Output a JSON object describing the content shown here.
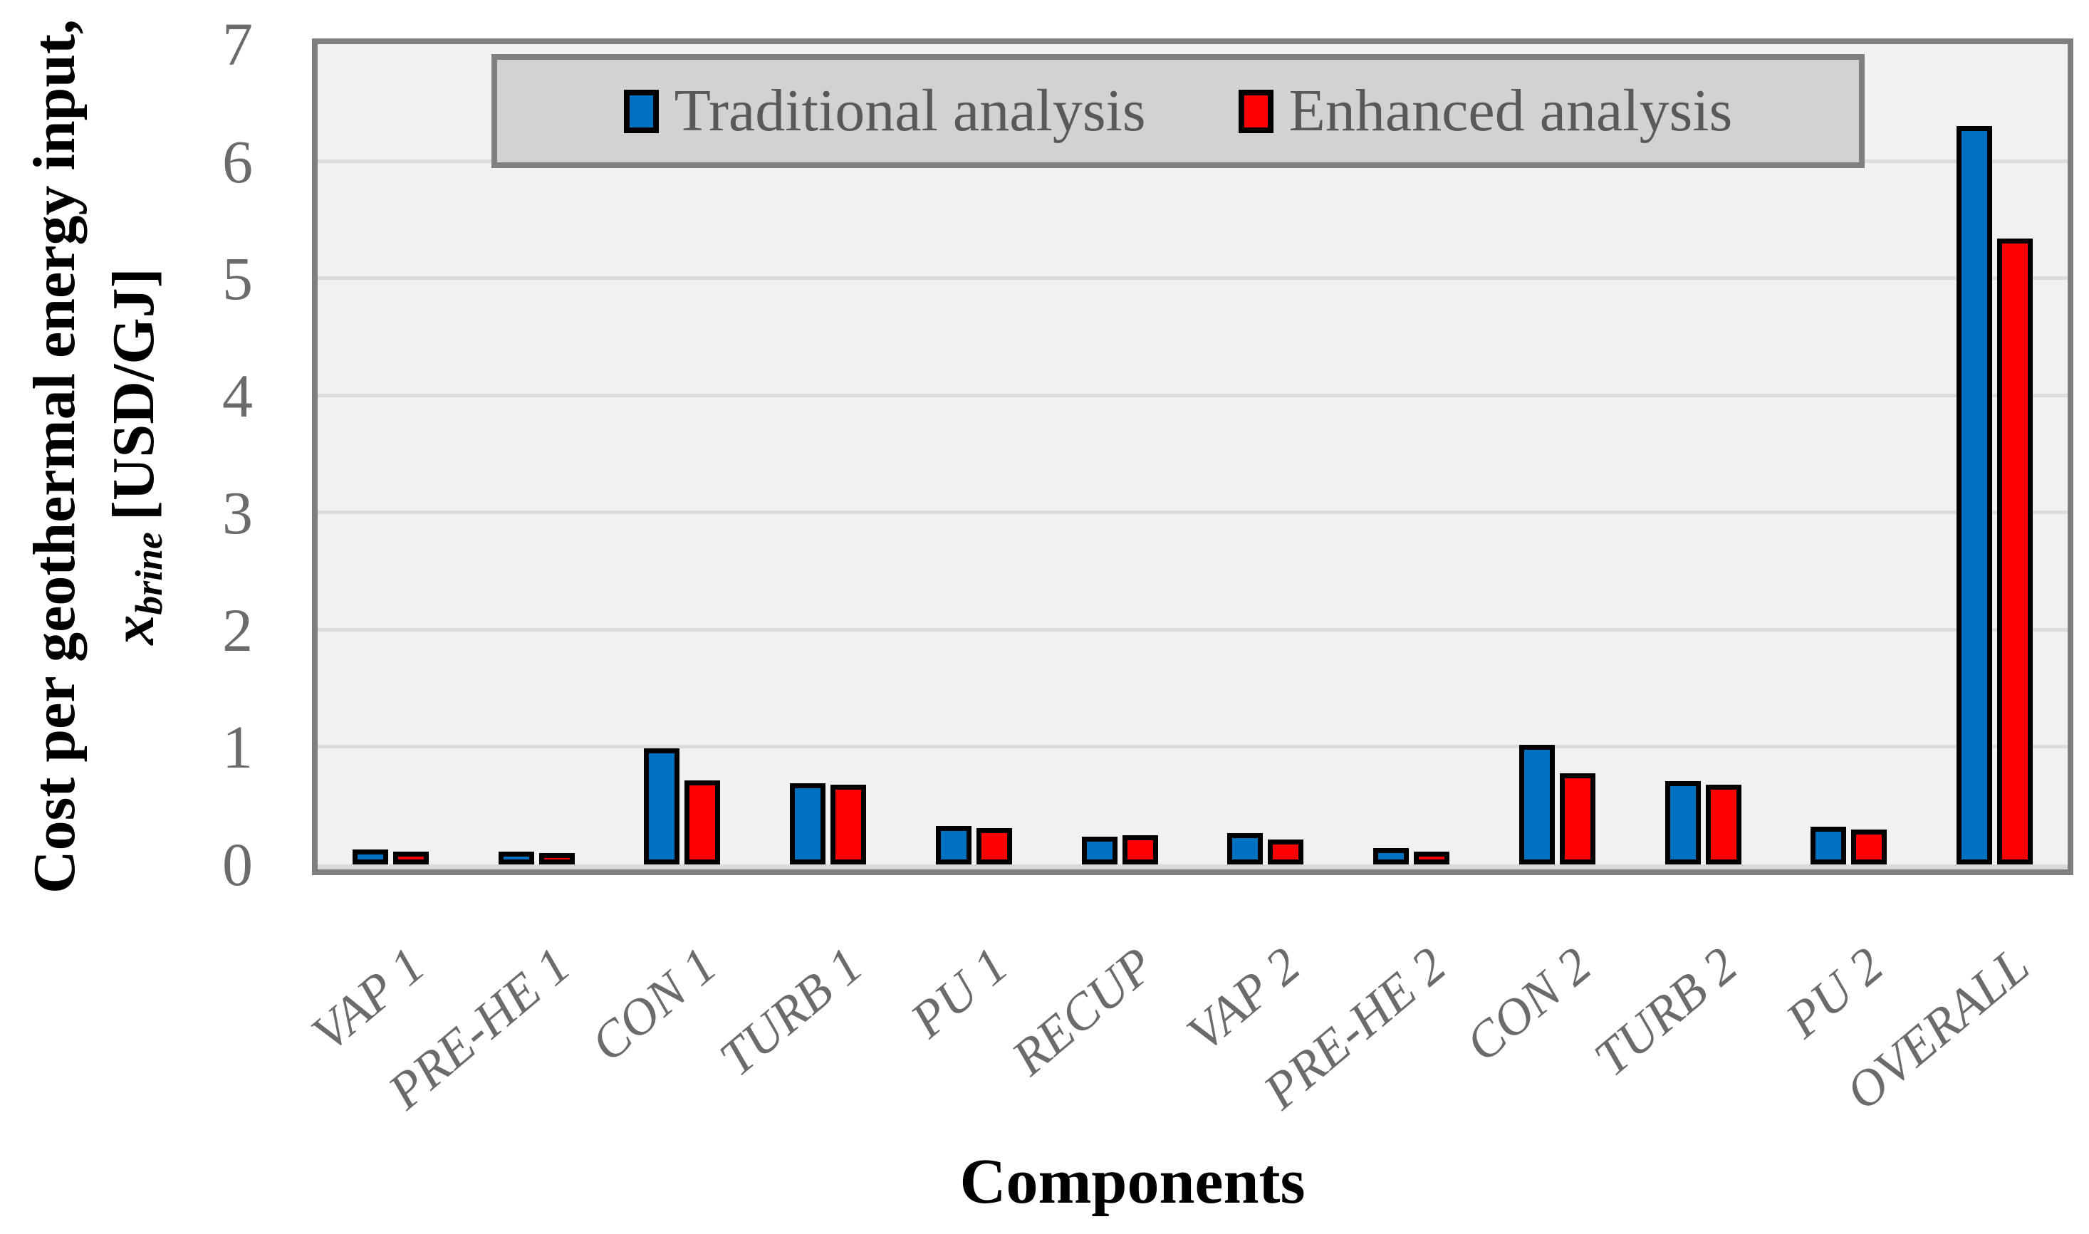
{
  "chart_data": {
    "type": "bar",
    "title": "",
    "xlabel": "Components",
    "ylabel": {
      "line1": "Cost per geothermal energy input,",
      "symbol": "x",
      "symbol_sub": "brine",
      "units": "[USD/GJ]"
    },
    "categories": [
      "VAP 1",
      "PRE-HE 1",
      "CON 1",
      "TURB 1",
      "PU 1",
      "RECUP",
      "VAP 2",
      "PRE-HE 2",
      "CON 2",
      "TURB 2",
      "PU 2",
      "OVERALL"
    ],
    "series": [
      {
        "name": "Traditional analysis",
        "color": "#0070C0",
        "values": [
          0.13,
          0.11,
          0.99,
          0.69,
          0.33,
          0.24,
          0.27,
          0.14,
          1.02,
          0.71,
          0.32,
          6.3
        ]
      },
      {
        "name": "Enhanced analysis",
        "color": "#FF0000",
        "values": [
          0.11,
          0.1,
          0.72,
          0.68,
          0.31,
          0.25,
          0.21,
          0.11,
          0.78,
          0.68,
          0.3,
          5.34
        ]
      }
    ],
    "ylim": [
      0,
      7
    ],
    "yticks": [
      0,
      1,
      2,
      3,
      4,
      5,
      6,
      7
    ],
    "grid": "horizontal",
    "legend_position": "top-inside"
  },
  "style": {
    "plot_background": "#F1F1F1",
    "gridline_color": "#DCDCDC",
    "axis_border_color": "#7F7F7F",
    "baseline_color": "#D9D9D9",
    "legend_background": "#D2D2D2",
    "tick_label_color": "#6B6B6B",
    "legend_text_color": "#595959",
    "bar_border_color": "#000000",
    "title_color": "#000000"
  }
}
